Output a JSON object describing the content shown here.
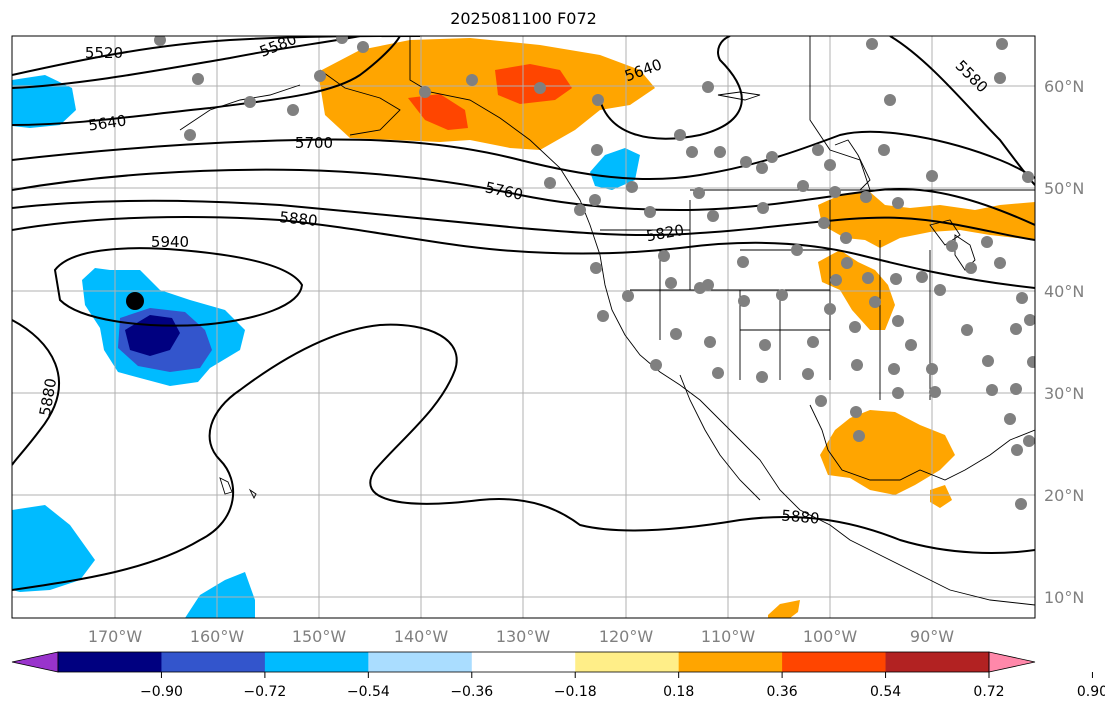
{
  "title": "2025081100 F072",
  "lon_ticks": [
    "170°W",
    "160°W",
    "150°W",
    "140°W",
    "130°W",
    "120°W",
    "110°W",
    "100°W",
    "90°W"
  ],
  "lat_ticks": [
    "60°N",
    "50°N",
    "40°N",
    "30°N",
    "20°N",
    "10°N"
  ],
  "contour_labels": [
    "5520",
    "5580",
    "5640",
    "5640",
    "5580",
    "5700",
    "5760",
    "5880",
    "5820",
    "5940",
    "5880",
    "5880"
  ],
  "colorbar": {
    "colors": [
      "#9933cc",
      "#000080",
      "#3355cc",
      "#00bbff",
      "#aaddff",
      "#ffffff",
      "#ffee88",
      "#ffa500",
      "#ff4500",
      "#b22222",
      "#ff88aa"
    ],
    "labels": [
      "−0.90",
      "−0.72",
      "−0.54",
      "−0.36",
      "−0.18",
      "0.18",
      "0.36",
      "0.54",
      "0.72",
      "0.90"
    ]
  },
  "markers": {
    "dot_color": "#808080",
    "center_color": "#000000"
  }
}
